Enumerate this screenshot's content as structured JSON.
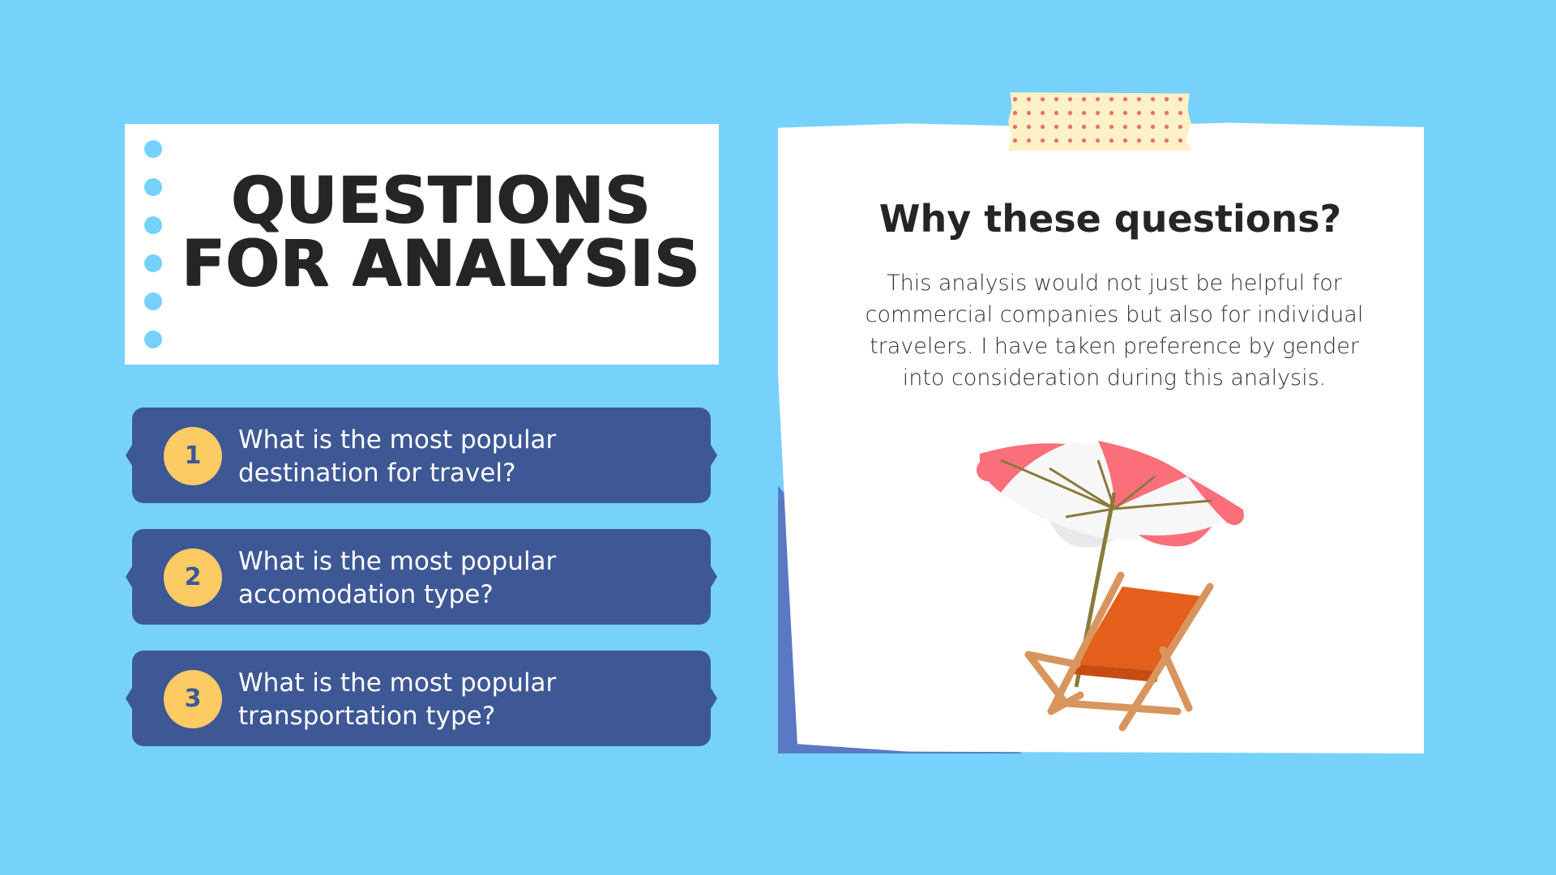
{
  "title": {
    "line1": "QUESTIONS",
    "line2": "FOR ANALYSIS"
  },
  "questions": [
    {
      "number": "1",
      "line1": "What is the most popular",
      "line2": "destination for travel?"
    },
    {
      "number": "2",
      "line1": "What is the most popular",
      "line2": "accomodation type?"
    },
    {
      "number": "3",
      "line1": "What is the most popular",
      "line2": "transportation type?"
    }
  ],
  "note": {
    "heading": "Why these questions?",
    "body": "This analysis would not just be helpful for commercial companies but also for individual travelers. I have taken preference by gender into consideration during this analysis."
  },
  "colors": {
    "background": "#76d2fb",
    "question_box": "#3e5896",
    "number_badge": "#fdcb64",
    "title_text": "#252525"
  },
  "icons": {
    "illustration": "beach-umbrella-and-deck-chair",
    "tape": "polka-dot-tape"
  }
}
